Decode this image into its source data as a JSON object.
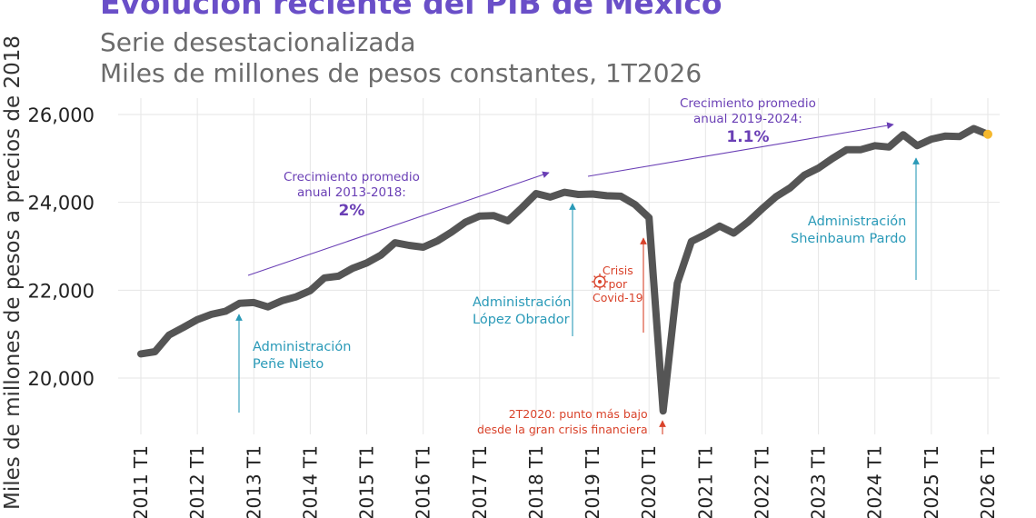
{
  "title": "Evolución reciente del PIB de México",
  "subtitle1": "Serie desestacionalizada",
  "subtitle2": "Miles de millones de pesos constantes, 1T2026",
  "ylabel": "Miles de millones de pesos a precios de 2018",
  "colors": {
    "line": "#555555",
    "title": "#6a4fc8",
    "purple": "#6a3fb5",
    "teal": "#2a9ab8",
    "red": "#d9432b",
    "marker": "#f5b82e",
    "grid": "#e6e6e6"
  },
  "annotations": {
    "growth1_l1": "Crecimiento promedio",
    "growth1_l2": "anual 2013-2018:",
    "growth1_val": "2%",
    "growth2_l1": "Crecimiento promedio",
    "growth2_l2": "anual 2019-2024:",
    "growth2_val": "1.1%",
    "pena_l1": "Administración",
    "pena_l2": "Peñe Nieto",
    "amlo_l1": "Administración",
    "amlo_l2": "López Obrador",
    "sheinbaum_l1": "Administración",
    "sheinbaum_l2": "Sheinbaum Pardo",
    "covid_l1": "Crisis",
    "covid_l2": "por",
    "covid_l3": "Covid-19",
    "low_l1": "2T2020: punto más bajo",
    "low_l2": "desde la gran crisis financiera"
  },
  "chart_data": {
    "type": "line",
    "title": "Evolución reciente del PIB de México",
    "ylabel": "Miles de millones de pesos a precios de 2018",
    "ylim": [
      18500,
      26200
    ],
    "yticks": [
      20000,
      22000,
      24000,
      26000
    ],
    "ytick_labels": [
      "20,000",
      "22,000",
      "24,000",
      "26,000"
    ],
    "xtick_labels": [
      "2011 T1",
      "2012 T1",
      "2013 T1",
      "2014 T1",
      "2015 T1",
      "2016 T1",
      "2017 T1",
      "2018 T1",
      "2019 T1",
      "2020 T1",
      "2021 T1",
      "2022 T1",
      "2023 T1",
      "2024 T1",
      "2025 T1",
      "2026 T1"
    ],
    "grid": true,
    "series": [
      {
        "values": [
          20550,
          20600,
          20980,
          21150,
          21330,
          21450,
          21520,
          21700,
          21720,
          21620,
          21760,
          21850,
          21990,
          22280,
          22320,
          22500,
          22620,
          22800,
          23080,
          23020,
          22980,
          23120,
          23320,
          23550,
          23690,
          23700,
          23580,
          23880,
          24200,
          24120,
          24230,
          24180,
          24190,
          24150,
          24140,
          23950,
          23650,
          19250,
          22160,
          23110,
          23270,
          23460,
          23300,
          23550,
          23850,
          24130,
          24330,
          24620,
          24780,
          25000,
          25200,
          25200,
          25290,
          25260,
          25540,
          25290,
          25440,
          25510,
          25500,
          25680,
          25550
        ]
      }
    ],
    "end_point": {
      "x": "2026 T1",
      "y": 25550
    }
  }
}
